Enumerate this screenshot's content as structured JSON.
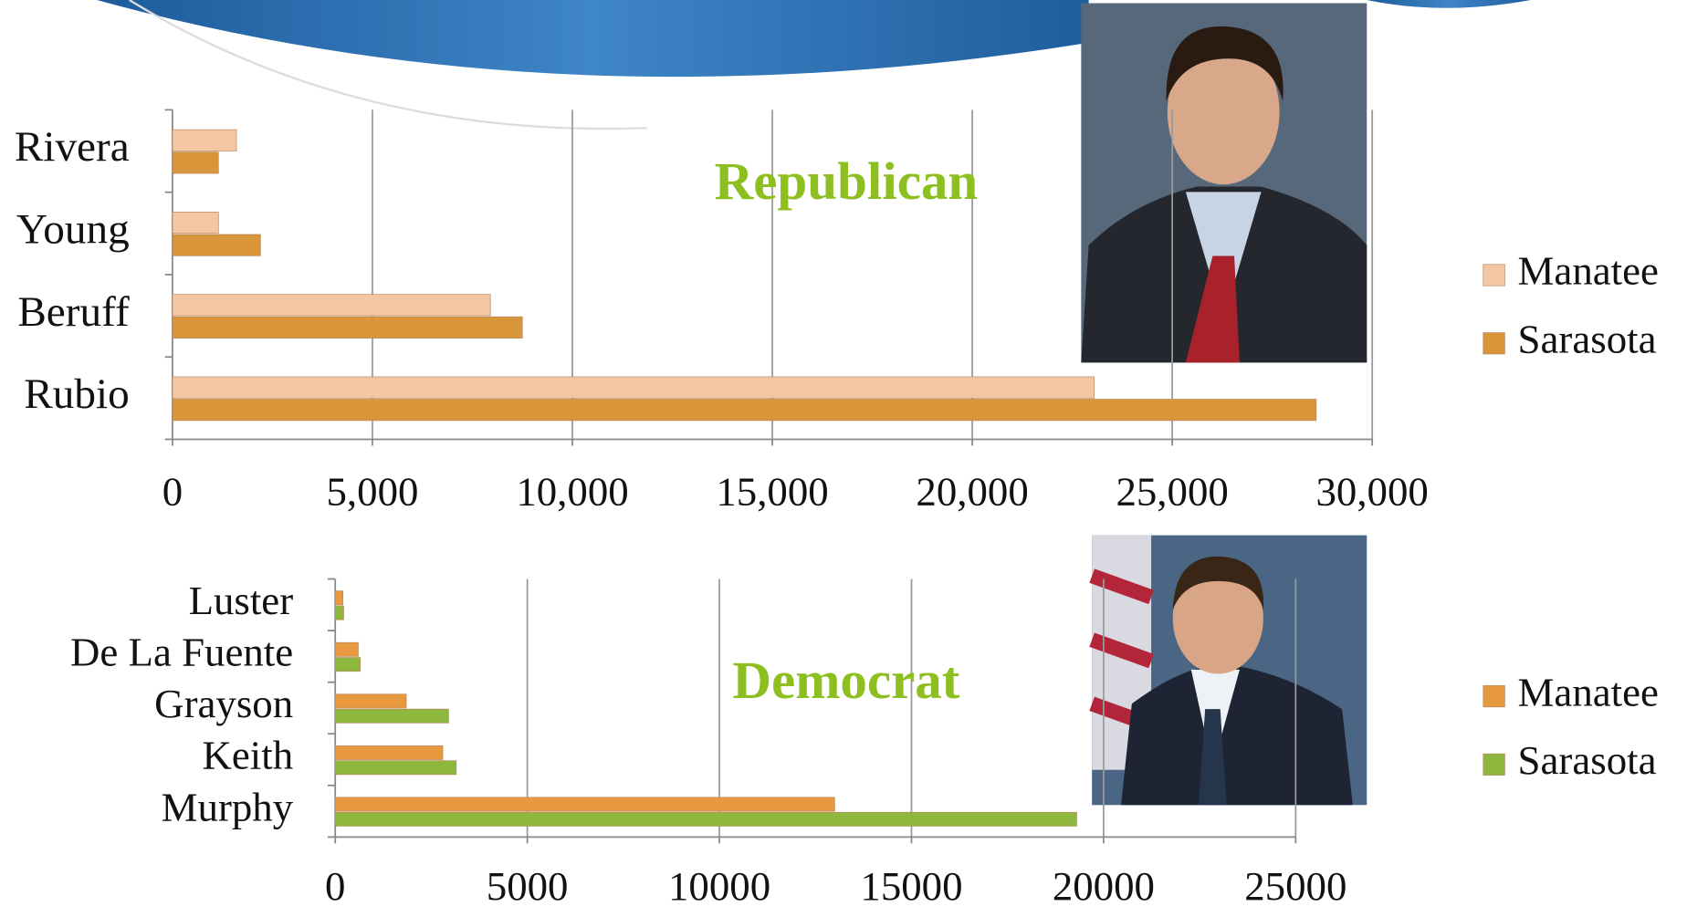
{
  "chart_data": [
    {
      "type": "hbar",
      "title": "Republican",
      "categories": [
        "Rivera",
        "Young",
        "Beruff",
        "Rubio"
      ],
      "series": [
        {
          "name": "Manatee",
          "color": "#f4c6a4",
          "values": [
            1600,
            1150,
            7950,
            23050
          ]
        },
        {
          "name": "Sarasota",
          "color": "#d8953a",
          "values": [
            1150,
            2200,
            8750,
            28600
          ]
        }
      ],
      "xlim": [
        0,
        30000
      ],
      "xticks": [
        0,
        {
          "value": 5000,
          "label": "5,000"
        },
        {
          "value": 10000,
          "label": "10,000"
        },
        {
          "value": 15000,
          "label": "15,000"
        },
        {
          "value": 20000,
          "label": "20,000"
        },
        {
          "value": 25000,
          "label": "25,000"
        },
        {
          "value": 30000,
          "label": "30,000"
        }
      ],
      "grid": true,
      "legend": "right"
    },
    {
      "type": "hbar",
      "title": "Democrat",
      "categories": [
        "Luster",
        "De La Fuente",
        "Grayson",
        "Keith",
        "Murphy"
      ],
      "series": [
        {
          "name": "Manatee",
          "color": "#e8993f",
          "values": [
            200,
            600,
            1850,
            2800,
            13000
          ]
        },
        {
          "name": "Sarasota",
          "color": "#8db83d",
          "values": [
            220,
            650,
            2950,
            3150,
            19300
          ]
        }
      ],
      "xlim": [
        0,
        25000
      ],
      "xticks": [
        0,
        5000,
        10000,
        15000,
        20000,
        25000
      ],
      "grid": true,
      "legend": "right"
    }
  ]
}
